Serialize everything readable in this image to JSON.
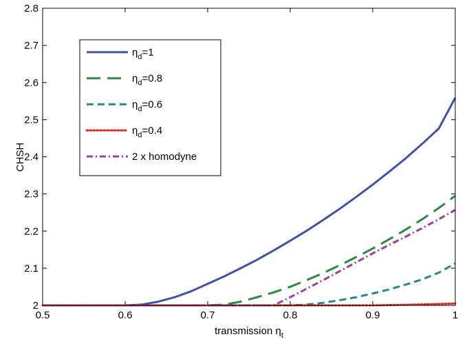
{
  "chart_data": {
    "type": "line",
    "title": "",
    "xlabel": {
      "base": "transmission η",
      "sub": "t"
    },
    "ylabel": "CHSH",
    "xlim": [
      0.5,
      1.0
    ],
    "ylim": [
      2.0,
      2.8
    ],
    "xticks": [
      "0.5",
      "0.6",
      "0.7",
      "0.8",
      "0.9",
      "1"
    ],
    "yticks": [
      "2",
      "2.1",
      "2.2",
      "2.3",
      "2.4",
      "2.5",
      "2.6",
      "2.7",
      "2.8"
    ],
    "grid": false,
    "legend_position": "top-left",
    "series": [
      {
        "legend": {
          "base": "η",
          "sub": "d",
          "rest": "=1"
        },
        "color": "#3f51a8",
        "style": "solid",
        "x": [
          0.5,
          0.55,
          0.6,
          0.62,
          0.64,
          0.66,
          0.68,
          0.7,
          0.72,
          0.74,
          0.76,
          0.78,
          0.8,
          0.82,
          0.84,
          0.86,
          0.88,
          0.9,
          0.92,
          0.94,
          0.96,
          0.98,
          1.0
        ],
        "y": [
          2.0,
          2.0,
          2.0,
          2.002,
          2.01,
          2.022,
          2.038,
          2.058,
          2.078,
          2.1,
          2.123,
          2.148,
          2.174,
          2.201,
          2.23,
          2.26,
          2.292,
          2.325,
          2.36,
          2.396,
          2.435,
          2.476,
          2.559
        ]
      },
      {
        "legend": {
          "base": "η",
          "sub": "d",
          "rest": "=0.8"
        },
        "color": "#2a8a3e",
        "style": "dashed",
        "x": [
          0.5,
          0.6,
          0.7,
          0.72,
          0.74,
          0.76,
          0.78,
          0.8,
          0.82,
          0.84,
          0.86,
          0.88,
          0.9,
          0.92,
          0.94,
          0.96,
          0.98,
          1.0
        ],
        "y": [
          2.0,
          2.0,
          2.0,
          2.002,
          2.01,
          2.022,
          2.035,
          2.05,
          2.068,
          2.087,
          2.108,
          2.13,
          2.153,
          2.178,
          2.204,
          2.232,
          2.262,
          2.295
        ]
      },
      {
        "legend": {
          "base": "η",
          "sub": "d",
          "rest": "=0.6"
        },
        "color": "#1f8a8a",
        "style": "dashed-short",
        "x": [
          0.5,
          0.6,
          0.7,
          0.8,
          0.82,
          0.84,
          0.86,
          0.88,
          0.9,
          0.92,
          0.94,
          0.96,
          0.98,
          1.0
        ],
        "y": [
          2.0,
          2.0,
          2.0,
          2.0,
          2.002,
          2.007,
          2.014,
          2.022,
          2.032,
          2.043,
          2.056,
          2.07,
          2.088,
          2.113
        ]
      },
      {
        "legend": {
          "base": "η",
          "sub": "d",
          "rest": "=0.4"
        },
        "color": "#e8231f",
        "style": "dotted",
        "x": [
          0.5,
          0.6,
          0.7,
          0.8,
          0.9,
          0.95,
          1.0
        ],
        "y": [
          2.0,
          2.0,
          2.0,
          2.0,
          2.0,
          2.002,
          2.005
        ]
      },
      {
        "legend": {
          "base": "2 x homodyne",
          "sub": "",
          "rest": ""
        },
        "color": "#a23b9e",
        "style": "dashdot",
        "x": [
          0.5,
          0.6,
          0.7,
          0.78,
          0.8,
          0.82,
          0.84,
          0.86,
          0.88,
          0.9,
          0.92,
          0.94,
          0.96,
          0.98,
          1.0
        ],
        "y": [
          2.0,
          2.0,
          2.0,
          2.0,
          2.022,
          2.045,
          2.068,
          2.092,
          2.116,
          2.14,
          2.163,
          2.185,
          2.208,
          2.232,
          2.257
        ]
      }
    ]
  }
}
